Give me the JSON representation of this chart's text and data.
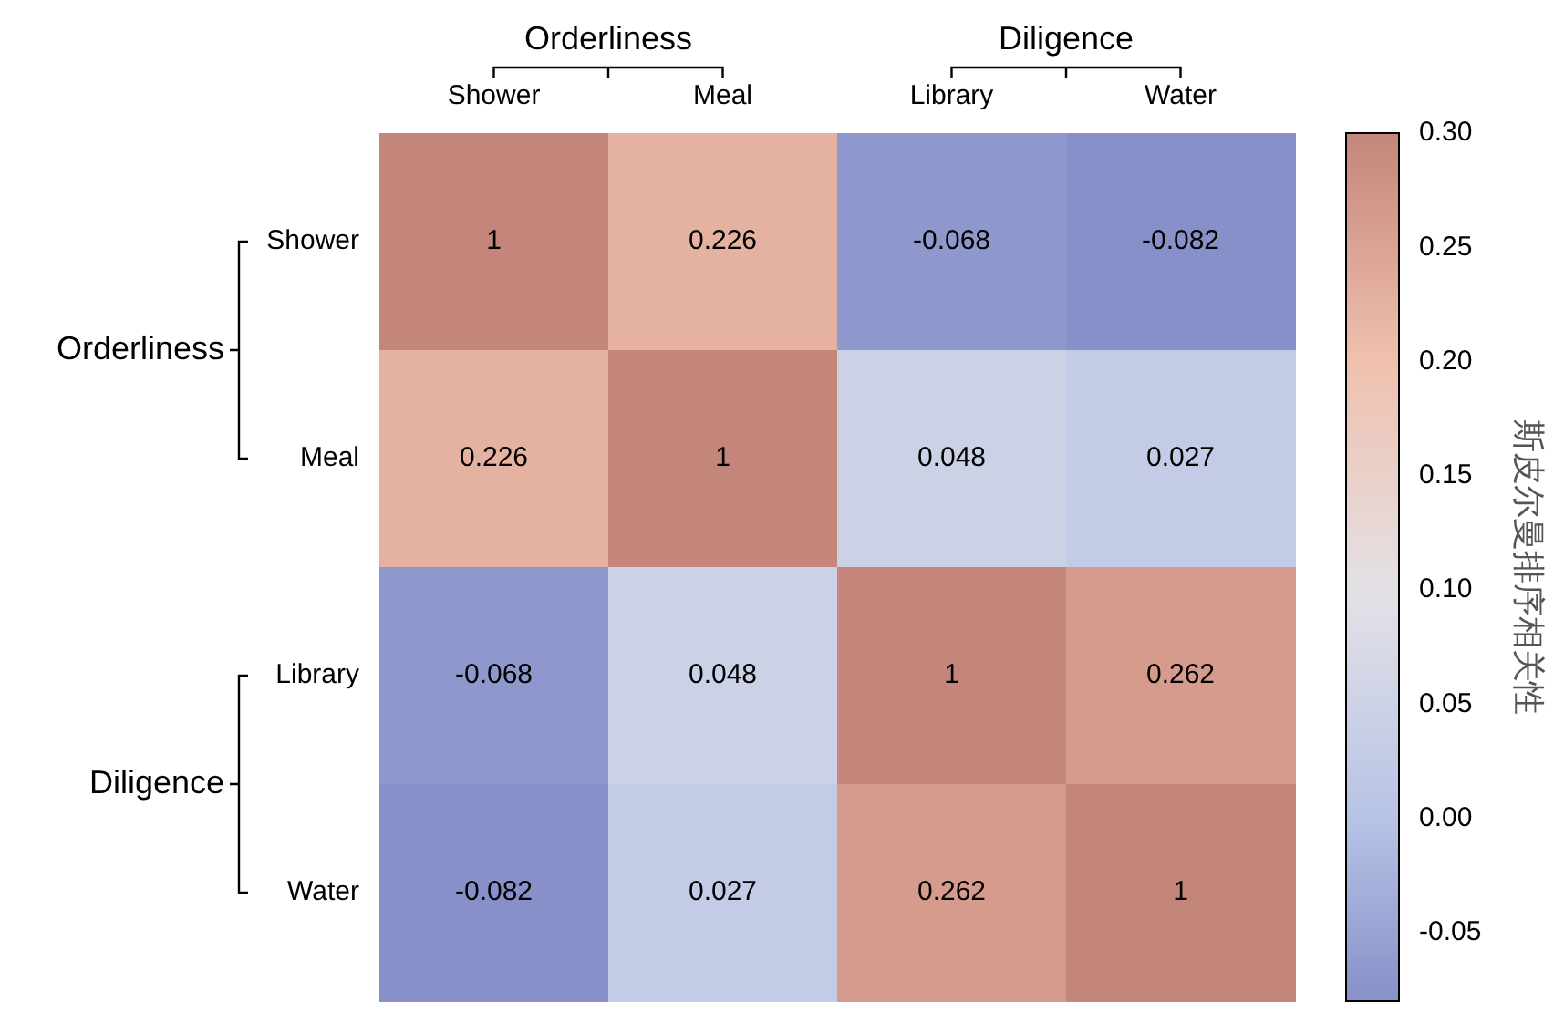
{
  "chart_data": {
    "type": "heatmap",
    "categories": [
      "Shower",
      "Meal",
      "Library",
      "Water"
    ],
    "y_categories": [
      "Shower",
      "Meal",
      "Library",
      "Water"
    ],
    "cells": [
      [
        1,
        0.226,
        -0.068,
        -0.082
      ],
      [
        0.226,
        1,
        0.048,
        0.027
      ],
      [
        -0.068,
        0.048,
        1,
        0.262
      ],
      [
        -0.082,
        0.027,
        0.262,
        1
      ]
    ],
    "data_labels": true,
    "clim": [
      -0.08,
      0.3
    ],
    "cticks": [
      {
        "value": -0.05,
        "label": "-0.05"
      },
      {
        "value": 0,
        "label": "0.00"
      },
      {
        "value": 0.05,
        "label": "0.05"
      },
      {
        "value": 0.1,
        "label": "0.10"
      },
      {
        "value": 0.15,
        "label": "0.15"
      },
      {
        "value": 0.2,
        "label": "0.20"
      },
      {
        "value": 0.25,
        "label": "0.25"
      },
      {
        "value": 0.3,
        "label": "0.30"
      }
    ],
    "clabel": "斯皮尔曼排序相关性",
    "annotations": [
      "Orderliness",
      "Diligence",
      "Orderliness",
      "Diligence"
    ]
  }
}
